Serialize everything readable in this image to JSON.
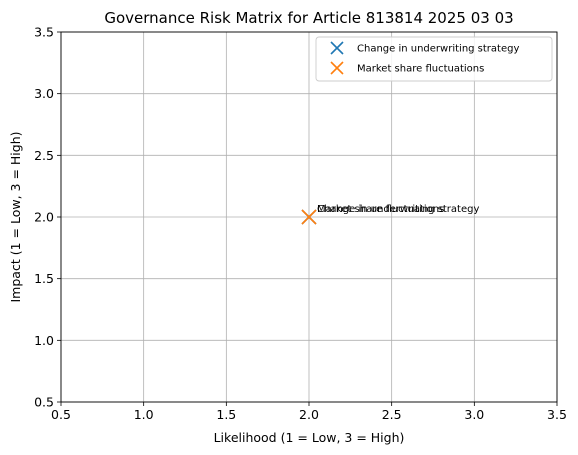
{
  "chart_data": {
    "type": "scatter",
    "title": "Governance Risk Matrix for Article 813814 2025 03 03",
    "xlabel": "Likelihood (1 = Low, 3 = High)",
    "ylabel": "Impact (1 = Low, 3 = High)",
    "xlim": [
      0.5,
      3.5
    ],
    "ylim": [
      0.5,
      3.5
    ],
    "xticks": [
      "0.5",
      "1.0",
      "1.5",
      "2.0",
      "2.5",
      "3.0",
      "3.5"
    ],
    "yticks": [
      "0.5",
      "1.0",
      "1.5",
      "2.0",
      "2.5",
      "3.0",
      "3.5"
    ],
    "grid": true,
    "legend_position": "top-right",
    "marker": "x",
    "series": [
      {
        "name": "Change in underwriting strategy",
        "color": "#1f77b4",
        "points": [
          {
            "x": 2,
            "y": 2,
            "label": "Change in underwriting strategy"
          }
        ]
      },
      {
        "name": "Market share fluctuations",
        "color": "#ff7f0e",
        "points": [
          {
            "x": 2,
            "y": 2,
            "label": "Market share fluctuations"
          }
        ]
      }
    ]
  }
}
